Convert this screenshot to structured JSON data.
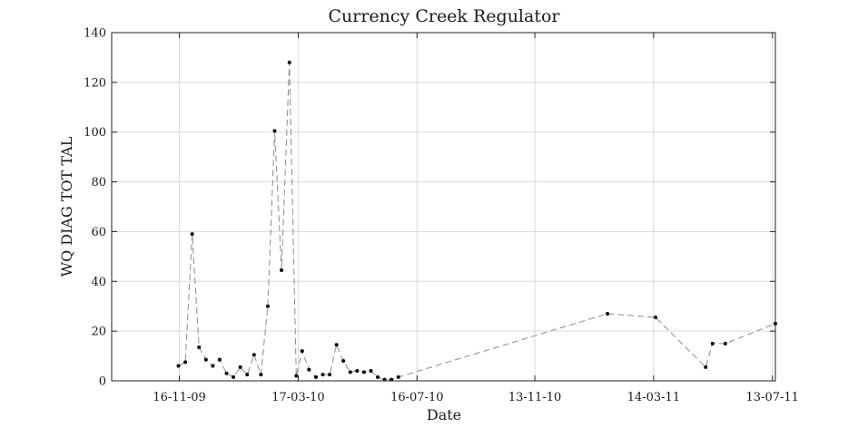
{
  "chart_data": {
    "type": "line",
    "title": "Currency Creek Regulator",
    "xlabel": "Date",
    "ylabel": "WQ DIAG TOT TAL",
    "x_type": "date",
    "xlim": [
      "2009-09-08",
      "2011-07-16"
    ],
    "ylim": [
      0,
      140
    ],
    "y_ticks": [
      0,
      20,
      40,
      60,
      80,
      100,
      120,
      140
    ],
    "x_ticks": [
      {
        "date": "2009-11-16",
        "label": "16-11-09"
      },
      {
        "date": "2010-03-17",
        "label": "17-03-10"
      },
      {
        "date": "2010-07-16",
        "label": "16-07-10"
      },
      {
        "date": "2010-11-13",
        "label": "13-11-10"
      },
      {
        "date": "2011-03-14",
        "label": "14-03-11"
      },
      {
        "date": "2011-07-13",
        "label": "13-07-11"
      }
    ],
    "grid": true,
    "line_style": "dashed",
    "line_color": "#8c8c8c",
    "marker_color": "#000000",
    "series": [
      {
        "points": [
          {
            "x": "2009-11-15",
            "y": 6
          },
          {
            "x": "2009-11-22",
            "y": 7.5
          },
          {
            "x": "2009-11-29",
            "y": 59
          },
          {
            "x": "2009-12-06",
            "y": 13.5
          },
          {
            "x": "2009-12-13",
            "y": 8.5
          },
          {
            "x": "2009-12-20",
            "y": 6
          },
          {
            "x": "2009-12-27",
            "y": 8.5
          },
          {
            "x": "2010-01-03",
            "y": 3
          },
          {
            "x": "2010-01-10",
            "y": 1.5
          },
          {
            "x": "2010-01-17",
            "y": 5.5
          },
          {
            "x": "2010-01-24",
            "y": 2.5
          },
          {
            "x": "2010-01-31",
            "y": 10.5
          },
          {
            "x": "2010-02-07",
            "y": 2.5
          },
          {
            "x": "2010-02-14",
            "y": 30
          },
          {
            "x": "2010-02-21",
            "y": 100.5
          },
          {
            "x": "2010-02-28",
            "y": 44.5
          },
          {
            "x": "2010-03-08",
            "y": 128
          },
          {
            "x": "2010-03-15",
            "y": 2
          },
          {
            "x": "2010-03-21",
            "y": 12
          },
          {
            "x": "2010-03-28",
            "y": 4.5
          },
          {
            "x": "2010-04-04",
            "y": 1.5
          },
          {
            "x": "2010-04-11",
            "y": 2.5
          },
          {
            "x": "2010-04-18",
            "y": 2.5
          },
          {
            "x": "2010-04-25",
            "y": 14.5
          },
          {
            "x": "2010-05-02",
            "y": 8
          },
          {
            "x": "2010-05-09",
            "y": 3.5
          },
          {
            "x": "2010-05-16",
            "y": 4
          },
          {
            "x": "2010-05-23",
            "y": 3.5
          },
          {
            "x": "2010-05-30",
            "y": 4
          },
          {
            "x": "2010-06-06",
            "y": 1.5
          },
          {
            "x": "2010-06-13",
            "y": 0.5
          },
          {
            "x": "2010-06-20",
            "y": 0.5
          },
          {
            "x": "2010-06-27",
            "y": 1.5
          },
          {
            "x": "2011-01-26",
            "y": 27
          },
          {
            "x": "2011-03-16",
            "y": 25.5
          },
          {
            "x": "2011-05-06",
            "y": 5.5
          },
          {
            "x": "2011-05-13",
            "y": 15
          },
          {
            "x": "2011-05-26",
            "y": 15
          },
          {
            "x": "2011-07-16",
            "y": 23
          }
        ]
      }
    ]
  }
}
